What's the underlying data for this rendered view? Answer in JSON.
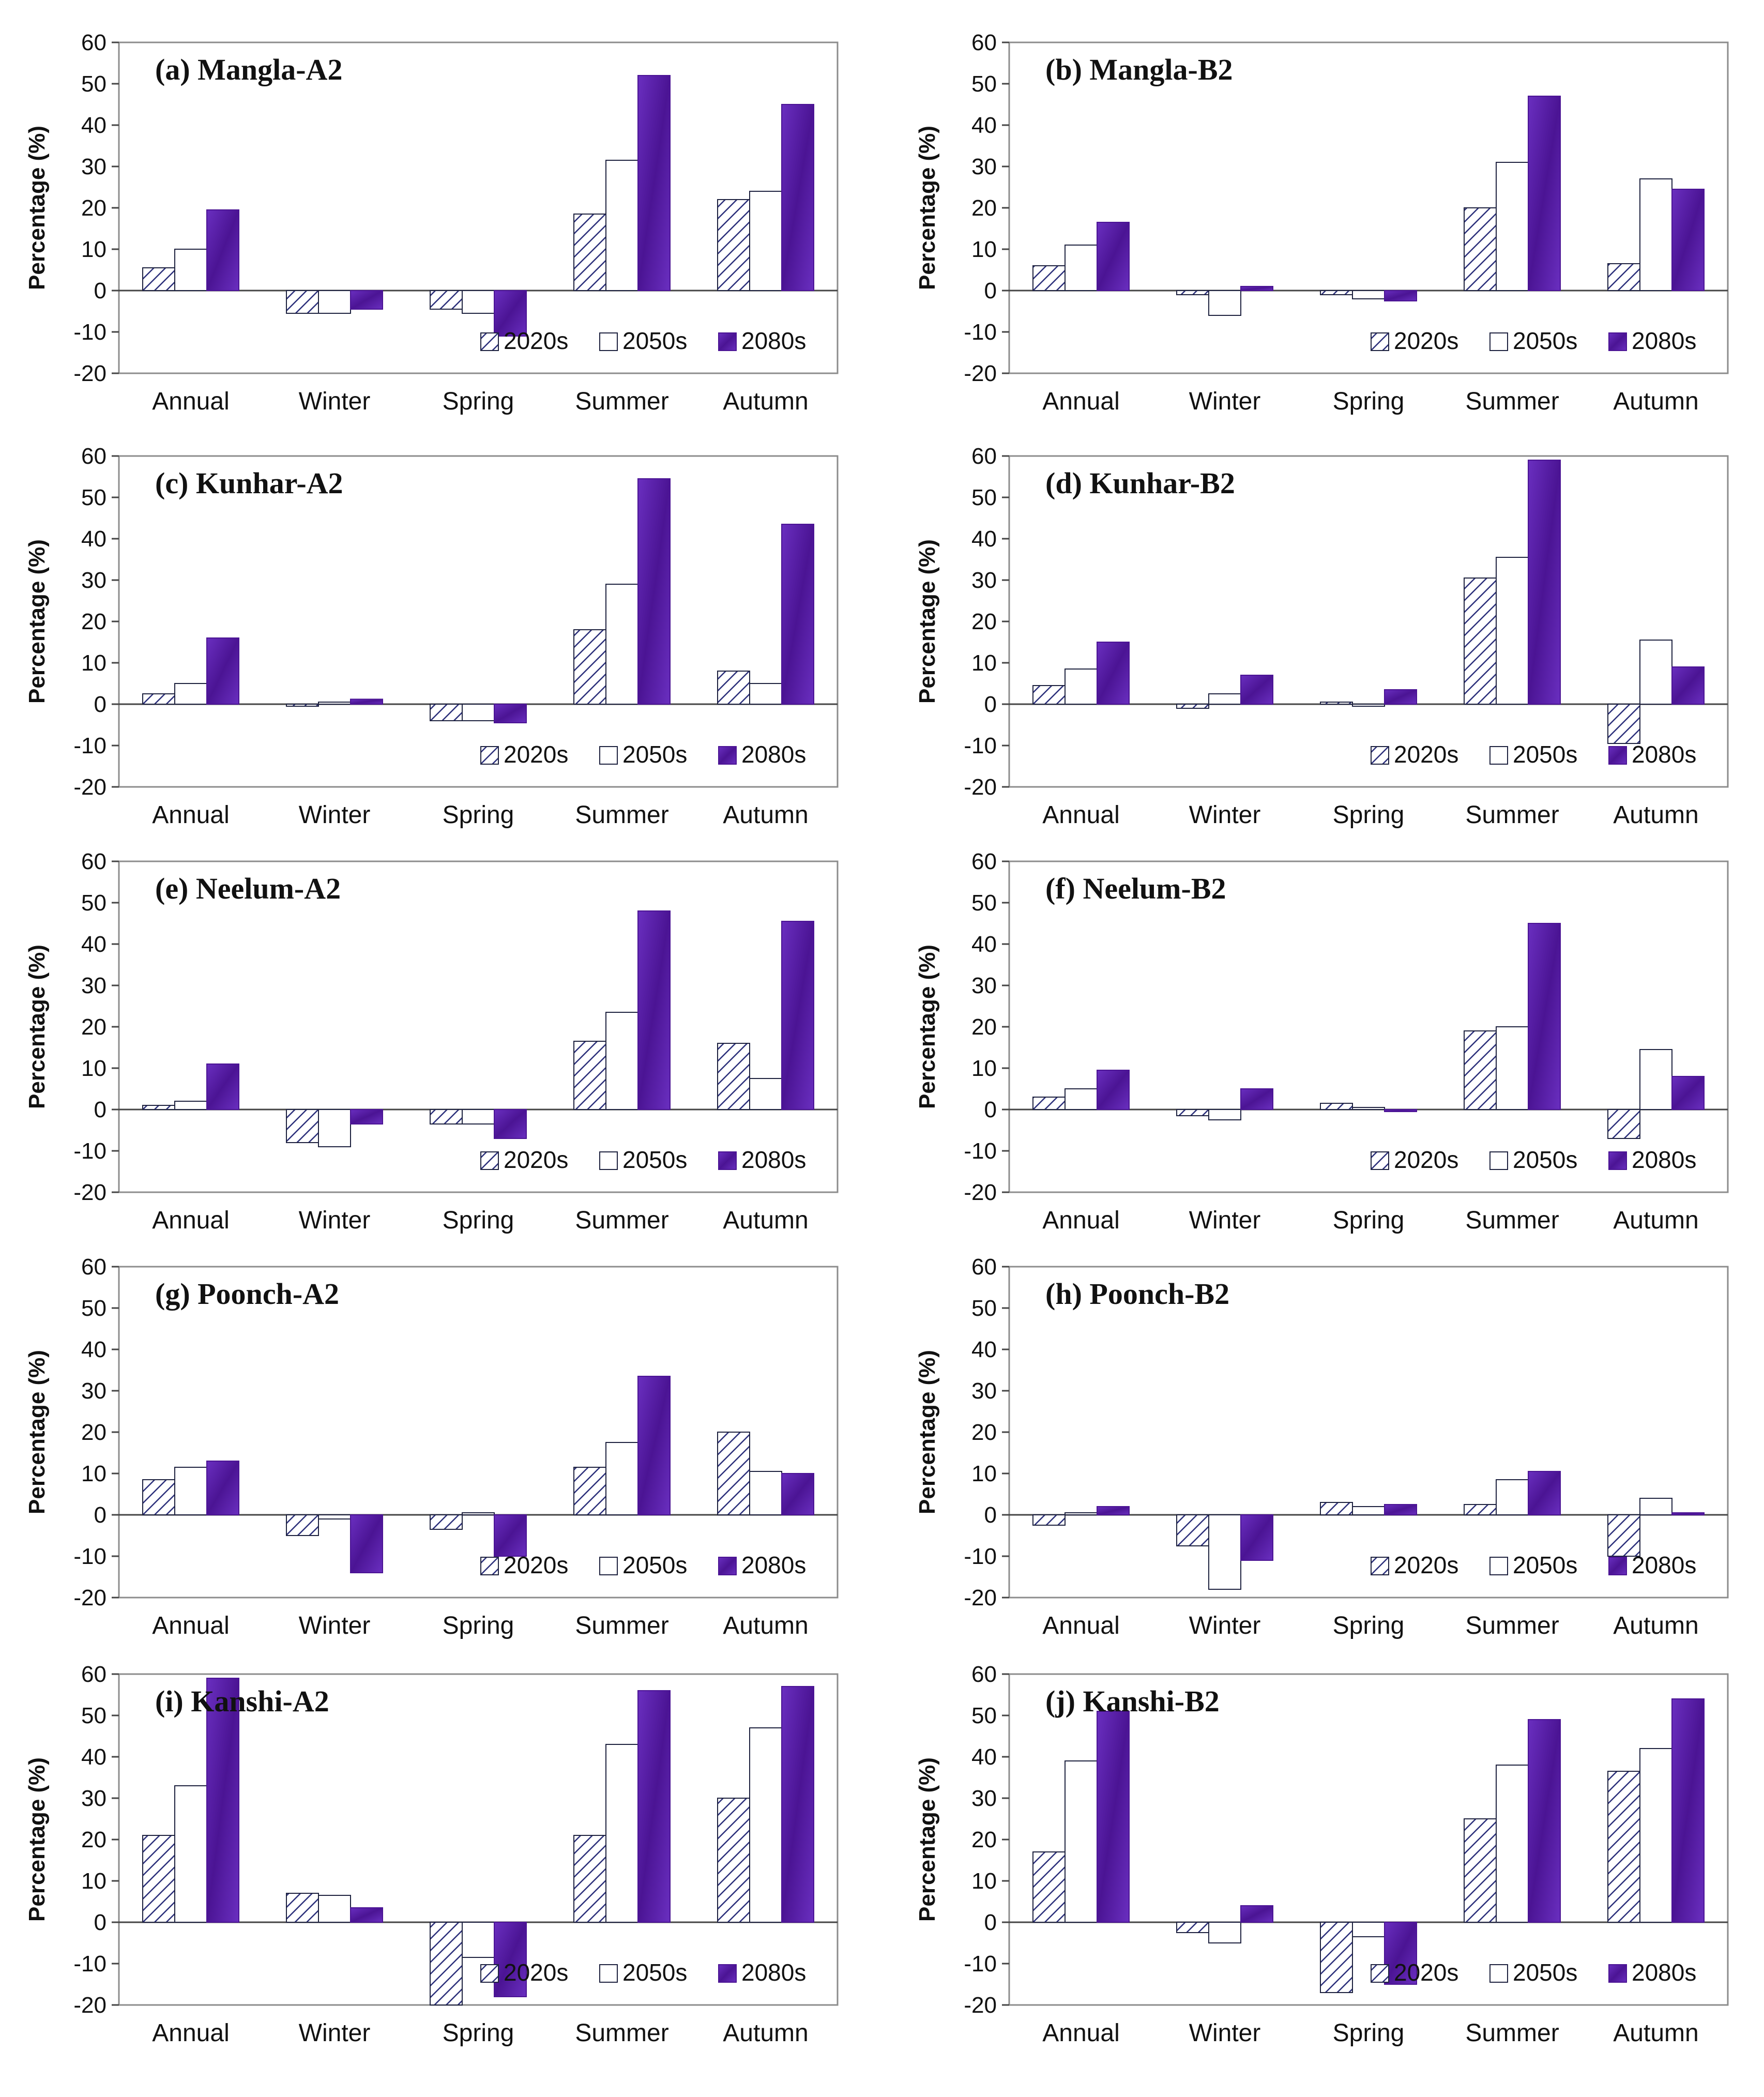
{
  "chart_data": [
    {
      "type": "bar",
      "title": "(a) Mangla-A2",
      "ylabel": "Percentage (%)",
      "xlabel": "",
      "ylim": [
        -20,
        60
      ],
      "yticks": [
        "60",
        "50",
        "40",
        "30",
        "20",
        "10",
        "0",
        "-10",
        "-20"
      ],
      "legend_position": "bottom-right",
      "categories": [
        "Annual",
        "Winter",
        "Spring",
        "Summer",
        "Autumn"
      ],
      "series": [
        {
          "name": "2020s",
          "style": "hatched",
          "values": [
            5.5,
            -5.5,
            -4.5,
            18.5,
            22
          ]
        },
        {
          "name": "2050s",
          "style": "open",
          "values": [
            10,
            -5.5,
            -5.5,
            31.5,
            24
          ]
        },
        {
          "name": "2080s",
          "style": "filled",
          "values": [
            19.5,
            -4.5,
            -11,
            52,
            45
          ]
        }
      ]
    },
    {
      "type": "bar",
      "title": "(b) Mangla-B2",
      "ylabel": "Percentage (%)",
      "xlabel": "",
      "ylim": [
        -20,
        60
      ],
      "yticks": [
        "60",
        "50",
        "40",
        "30",
        "20",
        "10",
        "0",
        "-10",
        "-20"
      ],
      "legend_position": "bottom-right",
      "categories": [
        "Annual",
        "Winter",
        "Spring",
        "Summer",
        "Autumn"
      ],
      "series": [
        {
          "name": "2020s",
          "style": "hatched",
          "values": [
            6,
            -1,
            -1,
            20,
            6.5
          ]
        },
        {
          "name": "2050s",
          "style": "open",
          "values": [
            11,
            -6,
            -2,
            31,
            27
          ]
        },
        {
          "name": "2080s",
          "style": "filled",
          "values": [
            16.5,
            1,
            -2.5,
            47,
            24.5
          ]
        }
      ]
    },
    {
      "type": "bar",
      "title": "(c) Kunhar-A2",
      "ylabel": "Percentage (%)",
      "xlabel": "",
      "ylim": [
        -20,
        60
      ],
      "yticks": [
        "60",
        "50",
        "40",
        "30",
        "20",
        "10",
        "0",
        "-10",
        "-20"
      ],
      "legend_position": "bottom-right",
      "categories": [
        "Annual",
        "Winter",
        "Spring",
        "Summer",
        "Autumn"
      ],
      "series": [
        {
          "name": "2020s",
          "style": "hatched",
          "values": [
            2.5,
            -0.5,
            -4,
            18,
            8
          ]
        },
        {
          "name": "2050s",
          "style": "open",
          "values": [
            5,
            0.5,
            -4,
            29,
            5
          ]
        },
        {
          "name": "2080s",
          "style": "filled",
          "values": [
            16,
            1.2,
            -4.5,
            54.5,
            43.5
          ]
        }
      ]
    },
    {
      "type": "bar",
      "title": "(d) Kunhar-B2",
      "ylabel": "Percentage (%)",
      "xlabel": "",
      "ylim": [
        -20,
        60
      ],
      "yticks": [
        "60",
        "50",
        "40",
        "30",
        "20",
        "10",
        "0",
        "-10",
        "-20"
      ],
      "legend_position": "bottom-right",
      "categories": [
        "Annual",
        "Winter",
        "Spring",
        "Summer",
        "Autumn"
      ],
      "series": [
        {
          "name": "2020s",
          "style": "hatched",
          "values": [
            4.5,
            -1,
            0.5,
            30.5,
            -9.5
          ]
        },
        {
          "name": "2050s",
          "style": "open",
          "values": [
            8.5,
            2.5,
            -0.5,
            35.5,
            15.5
          ]
        },
        {
          "name": "2080s",
          "style": "filled",
          "values": [
            15,
            7,
            3.5,
            59,
            9
          ]
        }
      ]
    },
    {
      "type": "bar",
      "title": "(e) Neelum-A2",
      "ylabel": "Percentage (%)",
      "xlabel": "",
      "ylim": [
        -20,
        60
      ],
      "yticks": [
        "60",
        "50",
        "40",
        "30",
        "20",
        "10",
        "0",
        "-10",
        "-20"
      ],
      "legend_position": "bottom-right",
      "categories": [
        "Annual",
        "Winter",
        "Spring",
        "Summer",
        "Autumn"
      ],
      "series": [
        {
          "name": "2020s",
          "style": "hatched",
          "values": [
            1,
            -8,
            -3.5,
            16.5,
            16
          ]
        },
        {
          "name": "2050s",
          "style": "open",
          "values": [
            2,
            -9,
            -3.5,
            23.5,
            7.5
          ]
        },
        {
          "name": "2080s",
          "style": "filled",
          "values": [
            11,
            -3.5,
            -7,
            48,
            45.5
          ]
        }
      ]
    },
    {
      "type": "bar",
      "title": "(f) Neelum-B2",
      "ylabel": "Percentage (%)",
      "xlabel": "",
      "ylim": [
        -20,
        60
      ],
      "yticks": [
        "60",
        "50",
        "40",
        "30",
        "20",
        "10",
        "0",
        "-10",
        "-20"
      ],
      "legend_position": "bottom-right",
      "categories": [
        "Annual",
        "Winter",
        "Spring",
        "Summer",
        "Autumn"
      ],
      "series": [
        {
          "name": "2020s",
          "style": "hatched",
          "values": [
            3,
            -1.5,
            1.5,
            19,
            -7
          ]
        },
        {
          "name": "2050s",
          "style": "open",
          "values": [
            5,
            -2.5,
            0.5,
            20,
            14.5
          ]
        },
        {
          "name": "2080s",
          "style": "filled",
          "values": [
            9.5,
            5,
            -0.5,
            45,
            8
          ]
        }
      ]
    },
    {
      "type": "bar",
      "title": "(g) Poonch-A2",
      "ylabel": "Percentage (%)",
      "xlabel": "",
      "ylim": [
        -20,
        60
      ],
      "yticks": [
        "60",
        "50",
        "40",
        "30",
        "20",
        "10",
        "0",
        "-10",
        "-20"
      ],
      "legend_position": "bottom-right",
      "categories": [
        "Annual",
        "Winter",
        "Spring",
        "Summer",
        "Autumn"
      ],
      "series": [
        {
          "name": "2020s",
          "style": "hatched",
          "values": [
            8.5,
            -5,
            -3.5,
            11.5,
            20
          ]
        },
        {
          "name": "2050s",
          "style": "open",
          "values": [
            11.5,
            -1,
            0.5,
            17.5,
            10.5
          ]
        },
        {
          "name": "2080s",
          "style": "filled",
          "values": [
            13,
            -14,
            -10,
            33.5,
            10
          ]
        }
      ]
    },
    {
      "type": "bar",
      "title": "(h) Poonch-B2",
      "ylabel": "Percentage (%)",
      "xlabel": "",
      "ylim": [
        -20,
        60
      ],
      "yticks": [
        "60",
        "50",
        "40",
        "30",
        "20",
        "10",
        "0",
        "-10",
        "-20"
      ],
      "legend_position": "bottom-right",
      "categories": [
        "Annual",
        "Winter",
        "Spring",
        "Summer",
        "Autumn"
      ],
      "series": [
        {
          "name": "2020s",
          "style": "hatched",
          "values": [
            -2.5,
            -7.5,
            3,
            2.5,
            -10
          ]
        },
        {
          "name": "2050s",
          "style": "open",
          "values": [
            0.5,
            -18,
            2,
            8.5,
            4
          ]
        },
        {
          "name": "2080s",
          "style": "filled",
          "values": [
            2,
            -11,
            2.5,
            10.5,
            0.5
          ]
        }
      ]
    },
    {
      "type": "bar",
      "title": "(i) Kanshi-A2",
      "ylabel": "Percentage (%)",
      "xlabel": "",
      "ylim": [
        -20,
        60
      ],
      "yticks": [
        "60",
        "50",
        "40",
        "30",
        "20",
        "10",
        "0",
        "-10",
        "-20"
      ],
      "legend_position": "bottom-right",
      "categories": [
        "Annual",
        "Winter",
        "Spring",
        "Summer",
        "Autumn"
      ],
      "series": [
        {
          "name": "2020s",
          "style": "hatched",
          "values": [
            21,
            7,
            -20,
            21,
            30
          ]
        },
        {
          "name": "2050s",
          "style": "open",
          "values": [
            33,
            6.5,
            -8.5,
            43,
            47
          ]
        },
        {
          "name": "2080s",
          "style": "filled",
          "values": [
            59,
            3.5,
            -18,
            56,
            57
          ]
        }
      ]
    },
    {
      "type": "bar",
      "title": "(j) Kanshi-B2",
      "ylabel": "Percentage (%)",
      "xlabel": "",
      "ylim": [
        -20,
        60
      ],
      "yticks": [
        "60",
        "50",
        "40",
        "30",
        "20",
        "10",
        "0",
        "-10",
        "-20"
      ],
      "legend_position": "bottom-right",
      "categories": [
        "Annual",
        "Winter",
        "Spring",
        "Summer",
        "Autumn"
      ],
      "series": [
        {
          "name": "2020s",
          "style": "hatched",
          "values": [
            17,
            -2.5,
            -17,
            25,
            36.5
          ]
        },
        {
          "name": "2050s",
          "style": "open",
          "values": [
            39,
            -5,
            -3.5,
            38,
            42
          ]
        },
        {
          "name": "2080s",
          "style": "filled",
          "values": [
            51,
            4,
            -15,
            49,
            54
          ]
        }
      ]
    }
  ],
  "colors": {
    "filled": "#4b1494",
    "filled_light": "#6a2fc0",
    "hatch_fill": "#ffffff",
    "hatch_line": "#2b2f7a",
    "bar_border": "#1f2340",
    "axis": "#444444",
    "frame": "#8c8c8c"
  }
}
